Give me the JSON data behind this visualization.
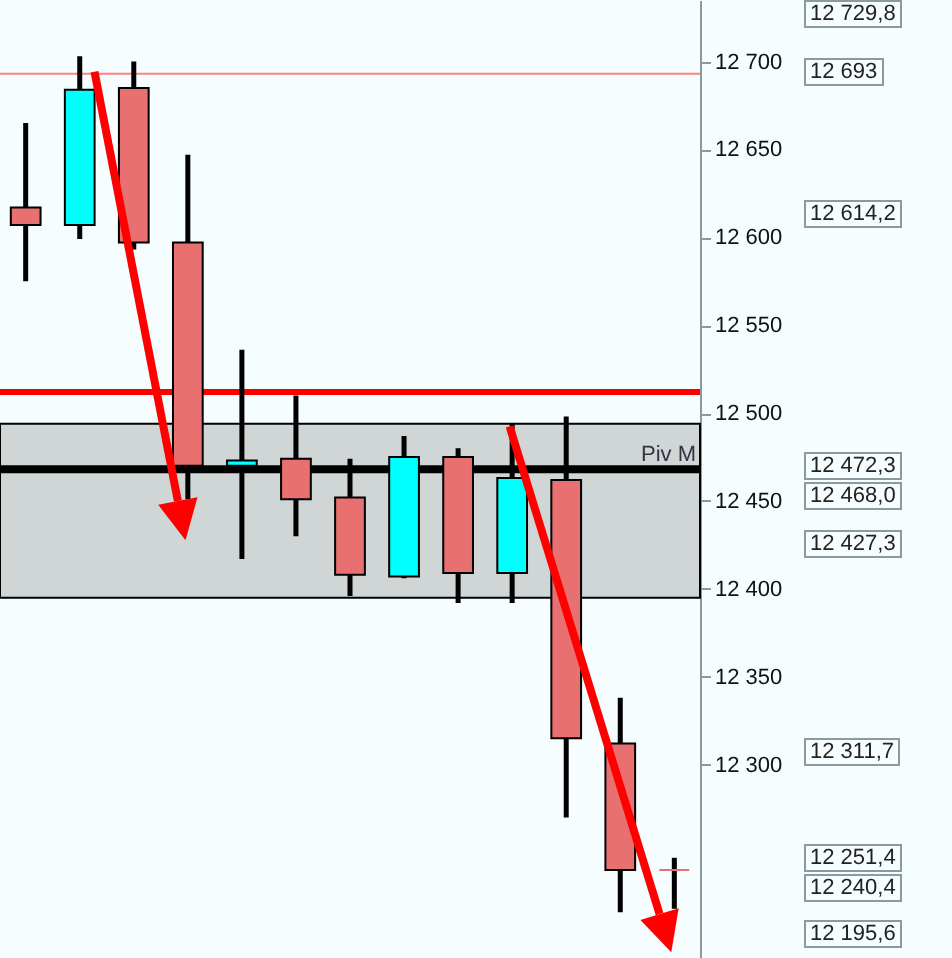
{
  "chart_data": {
    "type": "candlestick",
    "categories": [
      null,
      null,
      null,
      null,
      null,
      null,
      null,
      null,
      null,
      null,
      null,
      null,
      null
    ],
    "ohlc": [
      [
        12617,
        12665,
        12575,
        12607
      ],
      [
        12607,
        12703,
        12599,
        12684
      ],
      [
        12685,
        12700,
        12593,
        12597
      ],
      [
        12597,
        12647,
        12451,
        12470
      ],
      [
        12470,
        12536,
        12417,
        12473
      ],
      [
        12474,
        12510,
        12430,
        12451
      ],
      [
        12452,
        12474,
        12396,
        12408
      ],
      [
        12407,
        12487,
        12406,
        12475
      ],
      [
        12475,
        12480,
        12392,
        12409
      ],
      [
        12409,
        12494,
        12392,
        12463
      ],
      [
        12462,
        12498,
        12270,
        12315
      ],
      [
        12312,
        12338,
        12216,
        12240
      ],
      [
        12240,
        12247,
        12218,
        12240
      ]
    ],
    "colors": [
      "#e87070",
      "#00ffff",
      "#e87070",
      "#e87070",
      "#00ffff",
      "#e87070",
      "#e87070",
      "#00ffff",
      "#e87070",
      "#00ffff",
      "#e87070",
      "#e87070",
      "#e87070"
    ],
    "ylim": [
      12190,
      12735
    ],
    "yticks": [
      {
        "value": 12300,
        "label": "12 300"
      },
      {
        "value": 12350,
        "label": "12 350"
      },
      {
        "value": 12400,
        "label": "12 400"
      },
      {
        "value": 12450,
        "label": "12 450"
      },
      {
        "value": 12500,
        "label": "12 500"
      },
      {
        "value": 12550,
        "label": "12 550"
      },
      {
        "value": 12600,
        "label": "12 600"
      },
      {
        "value": 12650,
        "label": "12 650"
      },
      {
        "value": 12700,
        "label": "12 700"
      }
    ],
    "tick_labels": "y",
    "grid": false,
    "ref_lines": [
      {
        "axis": "y",
        "value": 12468,
        "label": "Piv M",
        "color": "#000000"
      },
      {
        "axis": "y",
        "value": 12512,
        "color": "#ff0000"
      },
      {
        "axis": "y",
        "value": 12693,
        "color": "#ff8080"
      }
    ],
    "bands": [
      {
        "axis": "y",
        "from": 12395,
        "to": 12494,
        "color": "#d0d5d5"
      }
    ],
    "annotations": [
      "12 729,8",
      "12 693",
      "12 614,2",
      "12 472,3",
      "12 468,0",
      "12 427,3",
      "12 311,7",
      "12 251,4",
      "12 240,4",
      "12 195,6"
    ]
  }
}
